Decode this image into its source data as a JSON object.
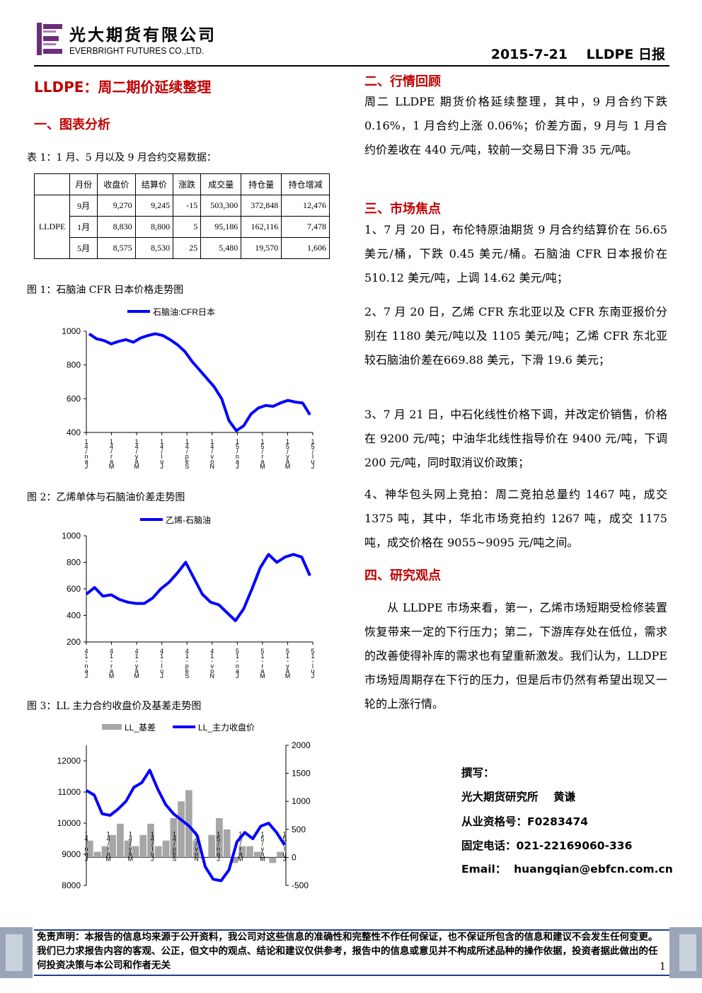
{
  "header": {
    "company_cn": "光大期货有限公司",
    "company_en": "EVERBRIGHT FUTURES CO.,LTD.",
    "date_title": "2015-7-21    LLDPE 日报"
  },
  "title": "LLDPE：周二期价延续整理",
  "sections": {
    "chart_analysis": "一、图表分析",
    "market_review": "二、行情回顾",
    "market_focus": "三、市场焦点",
    "research_view": "四、研究观点"
  },
  "table1": {
    "caption": "表 1：1 月、5 月以及 9 月合约交易数据：",
    "headers": [
      "月份",
      "收盘价",
      "结算价",
      "涨跌",
      "成交量",
      "持仓量",
      "持仓增减"
    ],
    "product": "LLDPE",
    "rows": [
      [
        "9月",
        "9,270",
        "9,245",
        "-15",
        "503,300",
        "372,848",
        "12,476"
      ],
      [
        "1月",
        "8,830",
        "8,800",
        "5",
        "95,186",
        "162,116",
        "7,478"
      ],
      [
        "5月",
        "8,575",
        "8,530",
        "25",
        "5,480",
        "19,570",
        "1,606"
      ]
    ]
  },
  "figure_captions": {
    "fig1": "图 1：石脑油 CFR 日本价格走势图",
    "fig2": "图 2：乙烯单体与石脑油价差走势图",
    "fig3": "图 3：LL 主力合约收盘价及基差走势图"
  },
  "chart_data": [
    {
      "type": "line",
      "series": [
        {
          "name": "石脑油:CFR日本",
          "color": "#0000ff"
        }
      ],
      "ylim": [
        400,
        1000
      ],
      "yticks": [
        "1000",
        "800",
        "600",
        "400"
      ],
      "xticks": [
        "1\n4\n/\nn\na\nJ",
        "1\n4\n/\nr\na\nM",
        "1\n4\n/\ny\na\nM",
        "1\n4\n/\nl\nu\nJ",
        "1\n4\n/\np\ne\nS",
        "1\n4\n/\nv\no\nN",
        "1\n5\n/\nn\na\nJ",
        "1\n5\n/\nr\na\nM",
        "1\n5\n/\ny\na\nM",
        "1\n5\n/\nl\nu\nJ"
      ],
      "values": [
        985,
        955,
        945,
        925,
        940,
        950,
        935,
        960,
        975,
        985,
        975,
        950,
        920,
        880,
        820,
        770,
        720,
        670,
        600,
        470,
        410,
        440,
        510,
        545,
        560,
        555,
        575,
        590,
        580,
        575,
        505
      ]
    },
    {
      "type": "line",
      "series": [
        {
          "name": "乙烯-石脑油",
          "color": "#0000ff"
        }
      ],
      "ylim": [
        200,
        1000
      ],
      "yticks": [
        "1000",
        "800",
        "600",
        "400",
        "200"
      ],
      "xticks": [
        "4\n1\n-\nn\na\nJ",
        "4\n1\n-\nr\na\nM",
        "4\n1\n-\ny\na\nM",
        "4\n1\n-\nl\nu\nJ",
        "4\n1\n-\np\ne\nS",
        "4\n1\n-\nv\no\nN",
        "5\n1\n-\nn\na\nJ",
        "5\n1\n-\nr\na\nM",
        "5\n1\n-\ny\na\nM",
        "5\n1\n-\nl\nu\nJ"
      ],
      "values": [
        560,
        610,
        545,
        555,
        520,
        500,
        490,
        490,
        530,
        600,
        650,
        720,
        800,
        680,
        560,
        500,
        480,
        420,
        360,
        450,
        600,
        760,
        860,
        800,
        840,
        860,
        840,
        700
      ]
    },
    {
      "type": "line",
      "series": [
        {
          "name": "LL_基差",
          "color": "#a6a6a6",
          "axis": "right"
        },
        {
          "name": "LL_主力收盘价",
          "color": "#0000ff",
          "axis": "left"
        }
      ],
      "ylim_left": [
        8000,
        12000
      ],
      "ylim_right": [
        -500,
        2000
      ],
      "yticks_left": [
        "12000",
        "11000",
        "10000",
        "9000",
        "8000"
      ],
      "yticks_right": [
        "2000",
        "1500",
        "1000",
        "500",
        "0",
        "-500"
      ],
      "xticks": [
        "1\n4\n/\nn\na\nJ",
        "1\n4\n/\nr\na\nM",
        "1\n4\n/\ny\na\nM",
        "1\n4\n/\nl\nu\nJ",
        "1\n4\n/\np\ne\nS",
        "1\n4\n/\nv\no\nN",
        "1\n5\n/\nn\na\nJ",
        "1\n5\n/\nr\na\nM",
        "1\n5\n/\ny\na\nM",
        "1\n5\n/\nl\nu\nJ"
      ],
      "close": [
        11050,
        10900,
        10300,
        10250,
        10450,
        10700,
        11150,
        11300,
        11700,
        11100,
        10600,
        10300,
        10100,
        9900,
        9600,
        8600,
        8200,
        8150,
        8500,
        9400,
        9700,
        9500,
        9900,
        10000,
        9700,
        9300
      ],
      "basis": [
        300,
        100,
        200,
        400,
        600,
        300,
        200,
        400,
        600,
        200,
        300,
        700,
        1000,
        1200,
        300,
        0,
        400,
        700,
        500,
        -100,
        200,
        200,
        100,
        0,
        -100,
        100
      ]
    }
  ],
  "market_review": {
    "text": "周二 LLDPE 期货价格延续整理，其中，9 月合约下跌 0.16%，1 月合约上涨 0.06%；价差方面，9 月与 1 月合约价差收在 440 元/吨，较前一交易日下滑 35 元/吨。"
  },
  "market_focus": {
    "items": [
      "1、7 月 20 日，布伦特原油期货 9 月合约结算价在 56.65 美元/桶，下跌 0.45 美元/桶。石脑油 CFR 日本报价在 510.12 美元/吨，上调 14.62 美元/吨；",
      "2、7 月 20 日，乙烯 CFR 东北亚以及 CFR 东南亚报价分别在 1180 美元/吨以及 1105 美元/吨；乙烯 CFR 东北亚较石脑油价差在669.88 美元，下滑 19.6 美元；",
      "3、7 月 21 日，中石化线性价格下调，并改定价销售，价格在 9200 元/吨；中油华北线性指导价在 9400 元/吨，下调 200 元/吨，同时取消议价政策；",
      "4、神华包头网上竞拍：周二竞拍总量约 1467 吨，成交 1375 吨，其中，华北市场竞拍约 1267 吨，成交 1175 吨，成交价格在 9055~9095 元/吨之间。"
    ]
  },
  "research_view": {
    "text": "从 LLDPE 市场来看，第一，乙烯市场短期受检修装置恢复带来一定的下行压力；第二，下游库存处在低位，需求的改善使得补库的需求也有望重新激发。我们认为，LLDPE 市场短周期存在下行的压力，但是后市仍然有希望出现又一轮的上涨行情。"
  },
  "author": {
    "label": "撰写：",
    "org_name": "光大期货研究所    黄谦",
    "cert": "从业资格号：F0283474",
    "phone": "固定电话：021-22169060-336",
    "email": "Email：  huangqian@ebfcn.com.cn"
  },
  "disclaimer": "免责声明：本报告的信息均来源于公开资料，我公司对这些信息的准确性和完整性不作任何保证，也不保证所包含的信息和建议不会发生任何变更。我们已力求报告内容的客观、公正，但文中的观点、结论和建议仅供参考，报告中的信息或意见并不构成所述品种的操作依据，投资者据此做出的任何投资决策与本公司和作者无关",
  "page_number": "1",
  "colors": {
    "accent_red": "#c00000",
    "series_blue": "#0000ff",
    "basis_gray": "#a6a6a6",
    "logo_purple": "#6b2d78"
  }
}
